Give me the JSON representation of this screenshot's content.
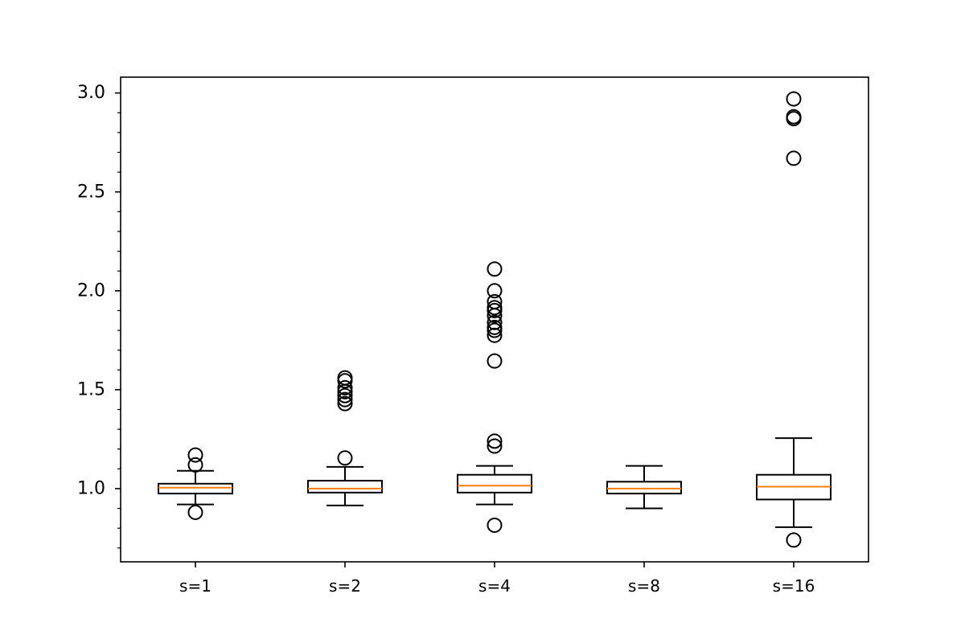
{
  "chart_data": {
    "type": "box",
    "title": "",
    "xlabel": "",
    "ylabel": "",
    "ylim": [
      0.63,
      3.08
    ],
    "yticks": [
      1.0,
      1.5,
      2.0,
      2.5,
      3.0
    ],
    "ytick_labels": [
      "1.0",
      "1.5",
      "2.0",
      "2.5",
      "3.0"
    ],
    "grid": false,
    "colors": {
      "box": "#000000",
      "median": "#ff7f0e"
    },
    "categories": [
      "s=1",
      "s=2",
      "s=4",
      "s=8",
      "s=16"
    ],
    "boxes": [
      {
        "label": "s=1",
        "whisker_low": 0.92,
        "q1": 0.975,
        "median": 1.005,
        "q3": 1.025,
        "whisker_high": 1.09,
        "fliers": [
          0.88,
          1.12,
          1.17
        ]
      },
      {
        "label": "s=2",
        "whisker_low": 0.915,
        "q1": 0.98,
        "median": 1.0,
        "q3": 1.04,
        "whisker_high": 1.11,
        "fliers": [
          1.155,
          1.43,
          1.45,
          1.47,
          1.49,
          1.51,
          1.545,
          1.56
        ]
      },
      {
        "label": "s=4",
        "whisker_low": 0.92,
        "q1": 0.98,
        "median": 1.015,
        "q3": 1.07,
        "whisker_high": 1.115,
        "fliers": [
          0.815,
          1.215,
          1.24,
          1.645,
          1.775,
          1.8,
          1.815,
          1.84,
          1.875,
          1.9,
          1.915,
          1.945,
          2.0,
          2.11
        ]
      },
      {
        "label": "s=8",
        "whisker_low": 0.9,
        "q1": 0.975,
        "median": 1.0,
        "q3": 1.035,
        "whisker_high": 1.115,
        "fliers": []
      },
      {
        "label": "s=16",
        "whisker_low": 0.805,
        "q1": 0.945,
        "median": 1.01,
        "q3": 1.07,
        "whisker_high": 1.255,
        "fliers": [
          0.74,
          2.67,
          2.87,
          2.88,
          2.97
        ]
      }
    ]
  }
}
